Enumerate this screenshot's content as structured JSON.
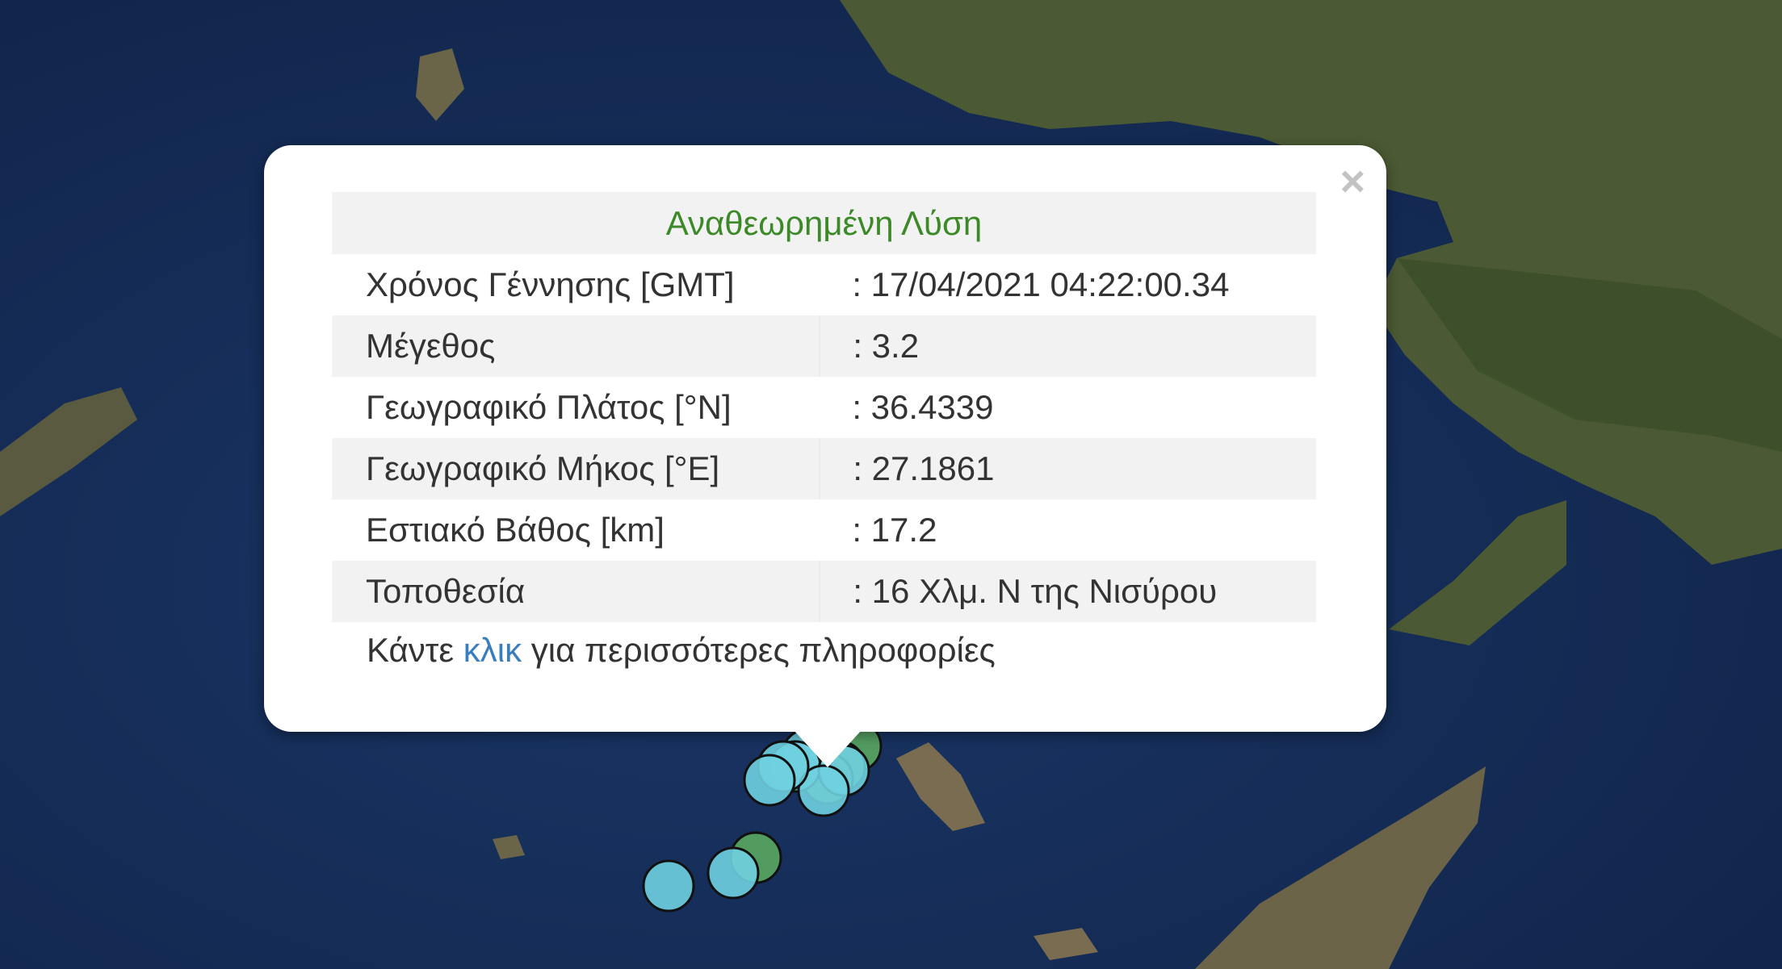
{
  "popup": {
    "title": "Αναθεωρημένη Λύση",
    "close_icon": "close-icon",
    "rows": [
      {
        "label": "Χρόνος Γέννησης [GMT]",
        "value": ": 17/04/2021 04:22:00.34"
      },
      {
        "label": "Μέγεθος",
        "value": ": 3.2"
      },
      {
        "label": "Γεωγραφικό Πλάτος [°N]",
        "value": ": 36.4339"
      },
      {
        "label": "Γεωγραφικό Μήκος [°E]",
        "value": ": 27.1861"
      },
      {
        "label": "Εστιακό Βάθος [km]",
        "value": ": 17.2"
      },
      {
        "label": "Τοποθεσία",
        "value": ": 16 Χλμ. Ν της Νισύρου"
      }
    ],
    "footer_before": "Κάντε ",
    "footer_link": "κλικ",
    "footer_after": " για περισσότερες πληροφορίες"
  },
  "colors": {
    "title": "#3c8a27",
    "link": "#3a7dbd",
    "marker_recent": "#6fd0e0",
    "marker_older": "#5aa860"
  }
}
